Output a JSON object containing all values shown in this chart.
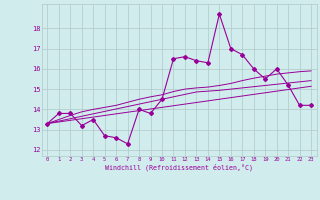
{
  "x": [
    0,
    1,
    2,
    3,
    4,
    5,
    6,
    7,
    8,
    9,
    10,
    11,
    12,
    13,
    14,
    15,
    16,
    17,
    18,
    19,
    20,
    21,
    22,
    23
  ],
  "y_main": [
    13.3,
    13.8,
    13.8,
    13.2,
    13.5,
    12.7,
    12.6,
    12.3,
    14.0,
    13.8,
    14.5,
    16.5,
    16.6,
    16.4,
    16.3,
    18.7,
    17.0,
    16.7,
    16.0,
    15.5,
    16.0,
    15.2,
    14.2,
    14.2
  ],
  "y_reg1": [
    13.3,
    13.38,
    13.46,
    13.54,
    13.62,
    13.7,
    13.78,
    13.86,
    13.94,
    14.02,
    14.1,
    14.18,
    14.26,
    14.34,
    14.42,
    14.5,
    14.58,
    14.66,
    14.74,
    14.82,
    14.9,
    14.98,
    15.06,
    15.14
  ],
  "y_reg2": [
    13.3,
    13.42,
    13.54,
    13.66,
    13.78,
    13.9,
    14.02,
    14.14,
    14.26,
    14.38,
    14.5,
    14.62,
    14.74,
    14.86,
    14.9,
    14.94,
    15.0,
    15.06,
    15.12,
    15.18,
    15.24,
    15.3,
    15.36,
    15.42
  ],
  "y_reg3": [
    13.3,
    13.5,
    13.7,
    13.88,
    14.0,
    14.1,
    14.2,
    14.35,
    14.5,
    14.62,
    14.72,
    14.88,
    15.0,
    15.06,
    15.1,
    15.18,
    15.28,
    15.42,
    15.54,
    15.64,
    15.74,
    15.8,
    15.86,
    15.9
  ],
  "line_color": "#990099",
  "bg_color": "#d0ecec",
  "grid_color": "#b0c8c8",
  "ylabel_values": [
    12,
    13,
    14,
    15,
    16,
    17,
    18
  ],
  "xlabel": "Windchill (Refroidissement éolien,°C)",
  "ylim": [
    11.7,
    19.2
  ],
  "xlim": [
    -0.5,
    23.5
  ]
}
